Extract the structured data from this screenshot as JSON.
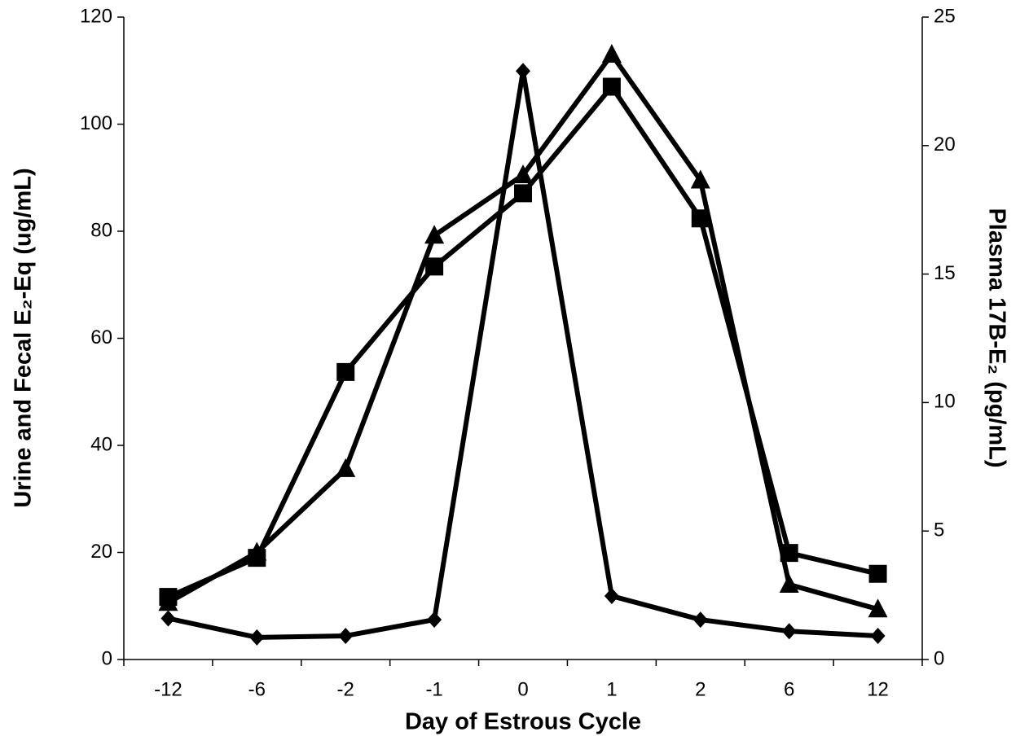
{
  "chart_data": {
    "type": "line",
    "xlabel": "Day of Estrous Cycle",
    "ylabel": "Urine and  Fecal E₂-Eq (ug/mL)",
    "y2label": "Plasma 17B-E₂ (pg/mL)",
    "categories": [
      "-12",
      "-6",
      "-2",
      "-1",
      "0",
      "1",
      "2",
      "6",
      "12"
    ],
    "ylim": [
      0,
      120
    ],
    "yticks": [
      0,
      20,
      40,
      60,
      80,
      100,
      120
    ],
    "y2lim": [
      0,
      25
    ],
    "y2ticks": [
      0,
      5,
      10,
      15,
      20,
      25
    ],
    "grid": false,
    "series": [
      {
        "color": "#000000",
        "marker": "diamond",
        "axis": "y2",
        "values": [
          1.6,
          0.86,
          0.92,
          1.55,
          22.9,
          2.47,
          1.55,
          1.1,
          0.92
        ]
      },
      {
        "color": "#000000",
        "marker": "square",
        "values": [
          11.7,
          19,
          53.7,
          73.4,
          87.1,
          107,
          82.4,
          19.9,
          16
        ]
      },
      {
        "color": "#000000",
        "marker": "triangle",
        "values": [
          10.6,
          20,
          35.6,
          79.2,
          90.5,
          113,
          89.5,
          14,
          9.4
        ]
      }
    ]
  }
}
